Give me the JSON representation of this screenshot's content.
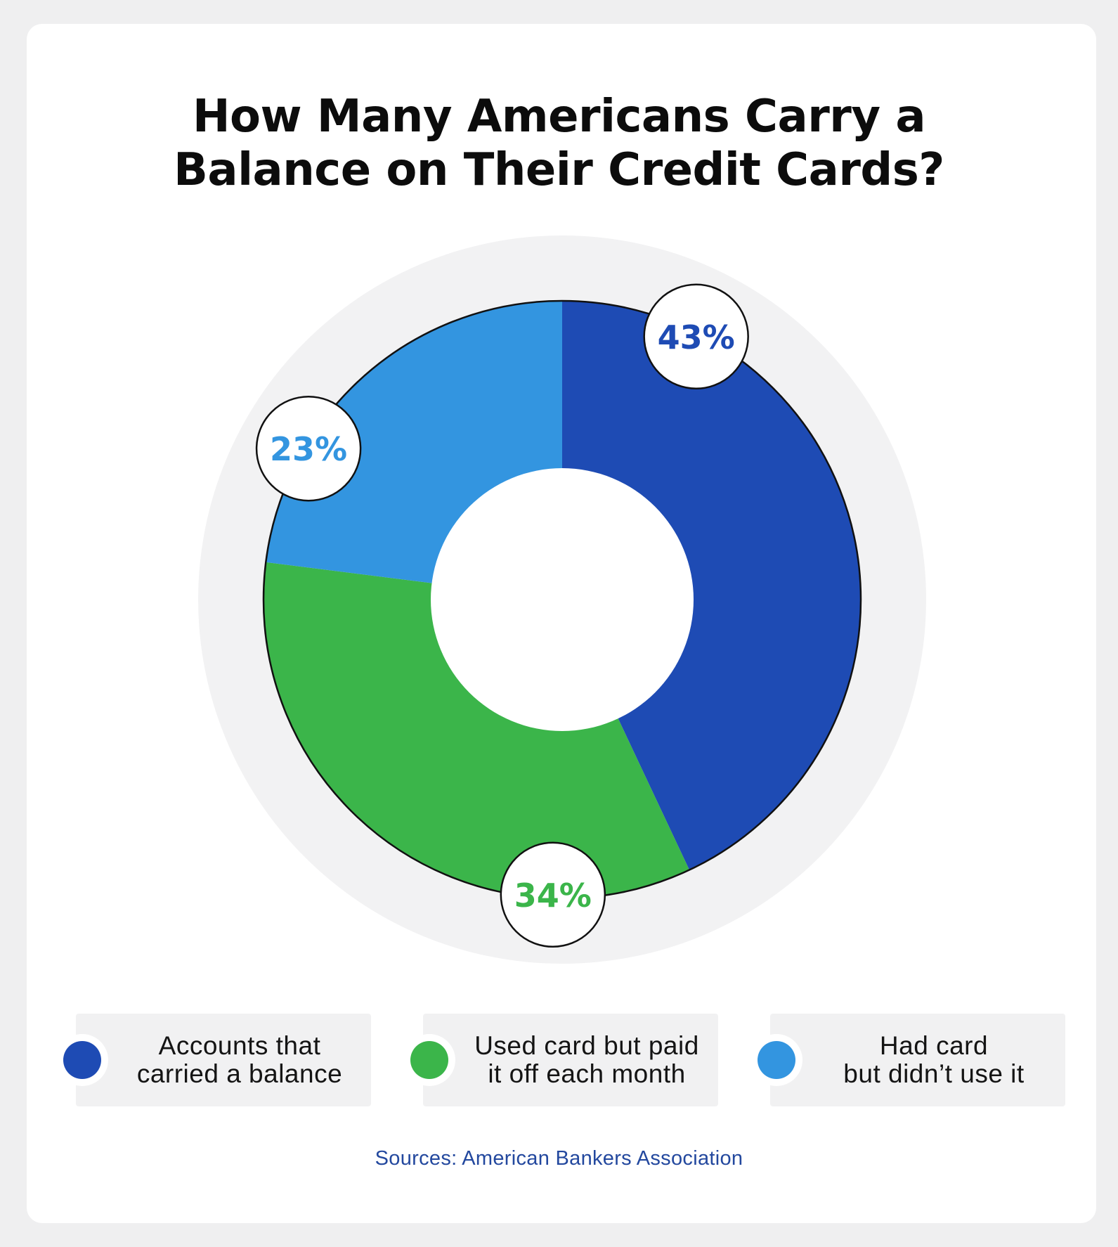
{
  "title_lines": [
    "How Many Americans Carry a",
    "Balance on Their Credit Cards?"
  ],
  "source": "Sources: American Bankers Association",
  "chart_data": {
    "type": "pie",
    "variant": "donut",
    "title": "How Many Americans Carry a Balance on Their Credit Cards?",
    "legend_position": "bottom",
    "slices": [
      {
        "label_lines": [
          "Accounts that",
          "carried a balance"
        ],
        "value": 43,
        "value_label": "43%",
        "color": "#1e4bb4"
      },
      {
        "label_lines": [
          "Used card but paid",
          "it off each month"
        ],
        "value": 34,
        "value_label": "34%",
        "color": "#3bb54a"
      },
      {
        "label_lines": [
          "Had card",
          "but didn’t use it"
        ],
        "value": 23,
        "value_label": "23%",
        "color": "#3395e0"
      }
    ]
  }
}
